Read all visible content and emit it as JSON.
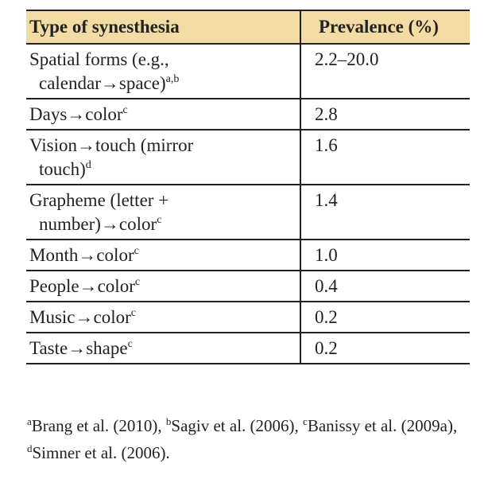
{
  "header": {
    "col1": "Type of synesthesia",
    "col2": "Prevalence (%)"
  },
  "rows": [
    {
      "line1": "Spatial forms (e.g.,",
      "line2": "calendar→space)",
      "sup": "a,b",
      "value": "2.2–20.0"
    },
    {
      "line1": "Days→color",
      "sup": "c",
      "value": "2.8"
    },
    {
      "line1": "Vision→touch (mirror",
      "line2": "touch)",
      "sup": "d",
      "value": "1.6"
    },
    {
      "line1": "Grapheme (letter +",
      "line2": "number)→color",
      "sup": "c",
      "value": "1.4"
    },
    {
      "line1": "Month→color",
      "sup": "c",
      "value": "1.0"
    },
    {
      "line1": "People→color",
      "sup": "c",
      "value": "0.4"
    },
    {
      "line1": "Music→color",
      "sup": "c",
      "value": "0.2"
    },
    {
      "line1": "Taste→shape",
      "sup": "c",
      "value": "0.2"
    }
  ],
  "footnotes": [
    {
      "mark": "a",
      "text": "Brang et al. (2010), "
    },
    {
      "mark": "b",
      "text": "Sagiv et al. (2006), "
    },
    {
      "mark": "c",
      "text": "Banissy et al. (2009a), "
    },
    {
      "mark": "d",
      "text": "Simner et al. (2006)."
    }
  ],
  "colors": {
    "header_bg": "#f2dca4",
    "rule": "#222222",
    "text": "#222222"
  }
}
